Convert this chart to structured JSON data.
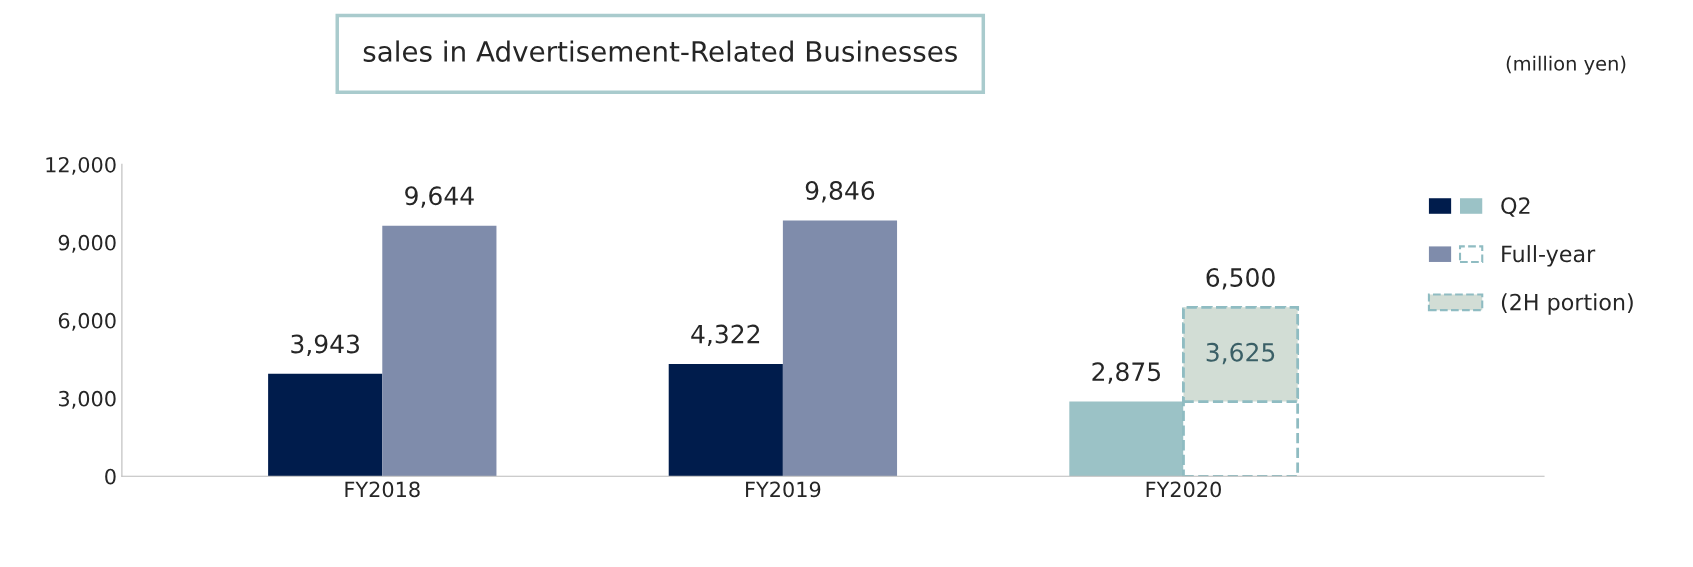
{
  "chart_data": {
    "type": "bar",
    "title": "sales in Advertisement-Related Businesses",
    "categories": [
      "FY2018",
      "FY2019",
      "FY2020"
    ],
    "series": [
      {
        "name": "Q2",
        "values": [
          3943,
          4322,
          2875
        ],
        "colors": [
          "#001c4c",
          "#001c4c",
          "#9bc2c6"
        ],
        "value_labels": [
          "3,943",
          "4,322",
          "2,875"
        ]
      },
      {
        "name": "Full-year",
        "values": [
          9644,
          9846,
          6500
        ],
        "colors": [
          "#7f8cab",
          "#7f8cab",
          "#ffffff"
        ],
        "value_labels": [
          "9,644",
          "9,846",
          "6,500"
        ]
      },
      {
        "name": "(2H portion)",
        "values": [
          null,
          null,
          3625
        ],
        "base": [
          null,
          null,
          2875
        ],
        "color": "#d2ddd5",
        "line_style": "dashed",
        "value_labels": [
          null,
          null,
          "3,625"
        ]
      }
    ],
    "ylim": [
      0,
      12000
    ],
    "yticks": [
      {
        "value": 0,
        "label": "0"
      },
      {
        "value": 3000,
        "label": "3,000"
      },
      {
        "value": 6000,
        "label": "6,000"
      },
      {
        "value": 9000,
        "label": "9,000"
      },
      {
        "value": 12000,
        "label": "12,000"
      }
    ],
    "annotations": [
      "(million yen)"
    ],
    "grid": false,
    "legend": "right"
  }
}
